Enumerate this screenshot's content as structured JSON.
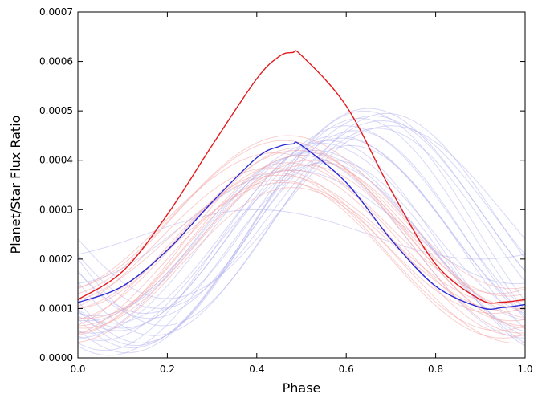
{
  "chart_data": {
    "type": "line",
    "title": "",
    "xlabel": "Phase",
    "ylabel": "Planet/Star Flux Ratio",
    "xlim": [
      0.0,
      1.0
    ],
    "ylim": [
      0.0,
      0.0007
    ],
    "x_ticks": [
      "0.0",
      "0.2",
      "0.4",
      "0.6",
      "0.8",
      "1.0"
    ],
    "y_ticks": [
      "0.0000",
      "0.0001",
      "0.0002",
      "0.0003",
      "0.0004",
      "0.0005",
      "0.0006",
      "0.0007"
    ],
    "grid": false,
    "legend": "none",
    "colors": {
      "red": "#e41a1c",
      "blue": "#2b2bd6",
      "red_faint": "#f4a0a0",
      "blue_faint": "#a8a8ee"
    },
    "series": [
      {
        "color": "red",
        "x": [
          0.0,
          0.1,
          0.2,
          0.3,
          0.4,
          0.45,
          0.48,
          0.5,
          0.6,
          0.7,
          0.8,
          0.9,
          0.95,
          1.0
        ],
        "values": [
          0.000118,
          0.000175,
          0.00029,
          0.00043,
          0.000565,
          0.00061,
          0.000618,
          0.000612,
          0.00051,
          0.00034,
          0.00019,
          0.000118,
          0.000113,
          0.000118
        ]
      },
      {
        "color": "blue",
        "x": [
          0.0,
          0.1,
          0.2,
          0.3,
          0.4,
          0.45,
          0.48,
          0.5,
          0.6,
          0.7,
          0.8,
          0.9,
          0.95,
          1.0
        ],
        "values": [
          0.000112,
          0.000145,
          0.000218,
          0.000315,
          0.000405,
          0.000428,
          0.000433,
          0.00043,
          0.000355,
          0.00024,
          0.000145,
          0.000102,
          0.000102,
          0.000108
        ]
      }
    ],
    "faint_red_curves": [
      {
        "min": 7.5e-05,
        "max": 0.000395,
        "peak_phase": 0.47
      },
      {
        "min": 5.5e-05,
        "max": 0.000375,
        "peak_phase": 0.44
      },
      {
        "min": 0.0001,
        "max": 0.00042,
        "peak_phase": 0.49
      },
      {
        "min": 4e-05,
        "max": 0.00036,
        "peak_phase": 0.45
      },
      {
        "min": 0.000125,
        "max": 0.00044,
        "peak_phase": 0.46
      },
      {
        "min": 6.5e-05,
        "max": 0.00041,
        "peak_phase": 0.5
      },
      {
        "min": 9e-05,
        "max": 0.000385,
        "peak_phase": 0.43
      },
      {
        "min": 3e-05,
        "max": 0.000345,
        "peak_phase": 0.48
      },
      {
        "min": 0.00014,
        "max": 0.00045,
        "peak_phase": 0.47
      },
      {
        "min": 8e-05,
        "max": 0.0004,
        "peak_phase": 0.52
      },
      {
        "min": 0.00011,
        "max": 0.00037,
        "peak_phase": 0.45
      },
      {
        "min": 5e-05,
        "max": 0.000425,
        "peak_phase": 0.49
      },
      {
        "min": 9.5e-05,
        "max": 0.000355,
        "peak_phase": 0.46
      },
      {
        "min": 6e-05,
        "max": 0.00039,
        "peak_phase": 0.51
      },
      {
        "min": 0.00013,
        "max": 0.000415,
        "peak_phase": 0.44
      },
      {
        "min": 4.5e-05,
        "max": 0.00038,
        "peak_phase": 0.48
      }
    ],
    "faint_blue_curves": [
      {
        "min": 3e-05,
        "max": 0.0005,
        "peak_phase": 0.64
      },
      {
        "min": 6e-05,
        "max": 0.00047,
        "peak_phase": 0.6
      },
      {
        "min": 1.5e-05,
        "max": 0.00044,
        "peak_phase": 0.56
      },
      {
        "min": 8e-05,
        "max": 0.00049,
        "peak_phase": 0.66
      },
      {
        "min": 5e-05,
        "max": 0.00042,
        "peak_phase": 0.53
      },
      {
        "min": 2e-05,
        "max": 0.00046,
        "peak_phase": 0.62
      },
      {
        "min": 0.0001,
        "max": 0.00048,
        "peak_phase": 0.68
      },
      {
        "min": 4e-05,
        "max": 0.00041,
        "peak_phase": 0.5
      },
      {
        "min": 7e-05,
        "max": 0.00045,
        "peak_phase": 0.58
      },
      {
        "min": 1e-05,
        "max": 0.00043,
        "peak_phase": 0.61
      },
      {
        "min": 9e-05,
        "max": 0.000505,
        "peak_phase": 0.65
      },
      {
        "min": 3.5e-05,
        "max": 0.000395,
        "peak_phase": 0.55
      },
      {
        "min": 0.00012,
        "max": 0.00047,
        "peak_phase": 0.7
      },
      {
        "min": 5.5e-05,
        "max": 0.000445,
        "peak_phase": 0.59
      },
      {
        "min": 2.5e-05,
        "max": 0.000485,
        "peak_phase": 0.63
      },
      {
        "min": 7.5e-05,
        "max": 0.000415,
        "peak_phase": 0.52
      },
      {
        "min": 4.5e-05,
        "max": 0.000465,
        "peak_phase": 0.67
      },
      {
        "min": 5e-06,
        "max": 0.0004,
        "peak_phase": 0.57
      },
      {
        "min": 8.5e-05,
        "max": 0.000435,
        "peak_phase": 0.54
      },
      {
        "min": 6.5e-05,
        "max": 0.000495,
        "peak_phase": 0.69
      },
      {
        "min": 0.00015,
        "max": 0.00038,
        "peak_phase": 0.48
      },
      {
        "min": 0.0002,
        "max": 0.0003,
        "peak_phase": 0.4
      }
    ]
  }
}
